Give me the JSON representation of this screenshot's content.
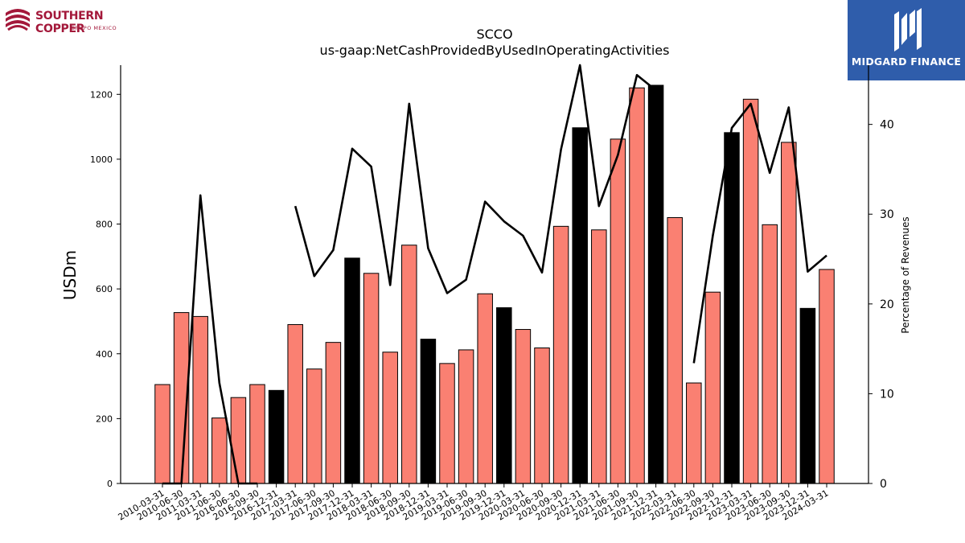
{
  "logos": {
    "left": {
      "name": "SOUTHERN COPPER",
      "sub": "GRUPO MEXICO",
      "color": "#a3183a"
    },
    "right": {
      "name": "MIDGARD FINANCE",
      "background": "#2f5dab"
    }
  },
  "chart_data": {
    "type": "bar",
    "title": "SCCO",
    "subtitle": "us-gaap:NetCashProvidedByUsedInOperatingActivities",
    "ylabel": "USDm",
    "y2label": "Percentage of Revenues",
    "ylim": [
      0,
      1290
    ],
    "y2lim": [
      0,
      46.6
    ],
    "yticks": [
      0,
      200,
      400,
      600,
      800,
      1000,
      1200
    ],
    "y2ticks": [
      0,
      10,
      20,
      30,
      40
    ],
    "categories": [
      "2010-03-31",
      "2010-06-30",
      "2011-03-31",
      "2011-06-30",
      "2016-06-30",
      "2016-09-30",
      "2016-12-31",
      "2017-03-31",
      "2017-06-30",
      "2017-09-30",
      "2017-12-31",
      "2018-03-31",
      "2018-06-30",
      "2018-09-30",
      "2018-12-31",
      "2019-03-31",
      "2019-06-30",
      "2019-09-30",
      "2019-12-31",
      "2020-03-31",
      "2020-06-30",
      "2020-09-30",
      "2020-12-31",
      "2021-03-31",
      "2021-06-30",
      "2021-09-30",
      "2021-12-31",
      "2022-03-31",
      "2022-06-30",
      "2022-09-30",
      "2022-12-31",
      "2023-03-31",
      "2023-06-30",
      "2023-09-30",
      "2023-12-31",
      "2024-03-31"
    ],
    "series": [
      {
        "type": "bar",
        "values": [
          305,
          527,
          515,
          202,
          265,
          305,
          287,
          490,
          353,
          435,
          695,
          648,
          405,
          735,
          445,
          370,
          412,
          585,
          542,
          475,
          418,
          793,
          1097,
          782,
          1062,
          1220,
          1228,
          820,
          310,
          590,
          1082,
          1185,
          798,
          1052,
          540,
          660
        ],
        "highlight": [
          false,
          false,
          false,
          false,
          false,
          false,
          true,
          false,
          false,
          false,
          true,
          false,
          false,
          false,
          true,
          false,
          false,
          false,
          true,
          false,
          false,
          false,
          true,
          false,
          false,
          false,
          true,
          false,
          false,
          false,
          true,
          false,
          false,
          false,
          true,
          false
        ],
        "color": "#fa8072",
        "highlight_color": "#000000"
      },
      {
        "type": "line",
        "axis": "secondary",
        "values": [
          0,
          0,
          32.1,
          11.2,
          0,
          0,
          null,
          30.9,
          23.1,
          26.0,
          37.3,
          35.3,
          22.1,
          42.3,
          26.2,
          21.2,
          22.7,
          31.4,
          29.2,
          27.6,
          23.5,
          37.2,
          46.6,
          30.9,
          36.6,
          45.5,
          43.8,
          null,
          13.4,
          27.6,
          39.6,
          42.3,
          34.6,
          41.9,
          23.6,
          25.4
        ],
        "color": "#000000"
      }
    ],
    "grid": false,
    "legend": "none"
  }
}
